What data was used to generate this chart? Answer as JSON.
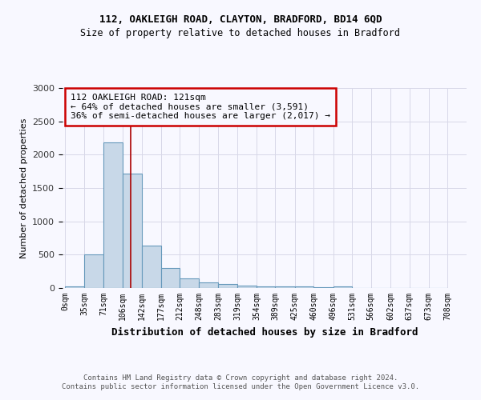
{
  "title1": "112, OAKLEIGH ROAD, CLAYTON, BRADFORD, BD14 6QD",
  "title2": "Size of property relative to detached houses in Bradford",
  "xlabel": "Distribution of detached houses by size in Bradford",
  "ylabel": "Number of detached properties",
  "footer1": "Contains HM Land Registry data © Crown copyright and database right 2024.",
  "footer2": "Contains public sector information licensed under the Open Government Licence v3.0.",
  "annotation_line1": "112 OAKLEIGH ROAD: 121sqm",
  "annotation_line2": "← 64% of detached houses are smaller (3,591)",
  "annotation_line3": "36% of semi-detached houses are larger (2,017) →",
  "bar_left_edges": [
    0,
    35,
    71,
    106,
    142,
    177,
    212,
    248,
    283,
    319,
    354,
    389,
    425,
    460,
    496,
    531,
    566,
    602,
    637,
    673
  ],
  "bar_widths": [
    35,
    36,
    35,
    36,
    35,
    35,
    36,
    35,
    35,
    35,
    35,
    36,
    35,
    36,
    35,
    35,
    36,
    35,
    36,
    35
  ],
  "bar_heights": [
    30,
    510,
    2180,
    1720,
    635,
    295,
    150,
    80,
    55,
    40,
    25,
    25,
    20,
    15,
    25,
    5,
    5,
    5,
    5,
    5
  ],
  "bar_color": "#c8d8e8",
  "bar_edgecolor": "#6699bb",
  "property_x": 121,
  "vline_color": "#aa0000",
  "annotation_box_color": "#cc0000",
  "ylim": [
    0,
    3000
  ],
  "yticks": [
    0,
    500,
    1000,
    1500,
    2000,
    2500,
    3000
  ],
  "xtick_labels": [
    "0sqm",
    "35sqm",
    "71sqm",
    "106sqm",
    "142sqm",
    "177sqm",
    "212sqm",
    "248sqm",
    "283sqm",
    "319sqm",
    "354sqm",
    "389sqm",
    "425sqm",
    "460sqm",
    "496sqm",
    "531sqm",
    "566sqm",
    "602sqm",
    "637sqm",
    "673sqm",
    "708sqm"
  ],
  "xtick_positions": [
    0,
    35,
    71,
    106,
    142,
    177,
    212,
    248,
    283,
    319,
    354,
    389,
    425,
    460,
    496,
    531,
    566,
    602,
    637,
    673,
    708
  ],
  "background_color": "#f8f8ff",
  "grid_color": "#d8d8e8"
}
